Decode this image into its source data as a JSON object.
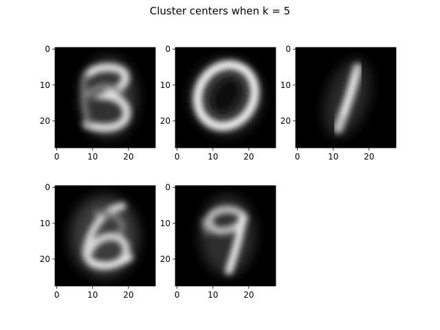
{
  "chart_data": {
    "type": "heatmap",
    "title": "Cluster centers when k = 5",
    "colormap": "gray",
    "image_shape": [
      28,
      28
    ],
    "grid": false,
    "layout": {
      "rows": 2,
      "cols": 3
    },
    "x_ticks": [
      0,
      10,
      20
    ],
    "y_ticks": [
      0,
      10,
      20
    ],
    "xlim": [
      -0.5,
      27.5
    ],
    "ylim": [
      27.5,
      -0.5
    ],
    "panels": [
      {
        "digit_depicted": "3",
        "xticks": [
          "0",
          "10",
          "20"
        ],
        "yticks": [
          "0",
          "10",
          "20"
        ]
      },
      {
        "digit_depicted": "0",
        "xticks": [
          "0",
          "10",
          "20"
        ],
        "yticks": [
          "0",
          "10",
          "20"
        ]
      },
      {
        "digit_depicted": "1",
        "xticks": [
          "0",
          "10",
          "20"
        ],
        "yticks": [
          "0",
          "10",
          "20"
        ]
      },
      {
        "digit_depicted": "6",
        "xticks": [
          "0",
          "10",
          "20"
        ],
        "yticks": [
          "0",
          "10",
          "20"
        ]
      },
      {
        "digit_depicted": "9",
        "xticks": [
          "0",
          "10",
          "20"
        ],
        "yticks": [
          "0",
          "10",
          "20"
        ]
      }
    ]
  }
}
